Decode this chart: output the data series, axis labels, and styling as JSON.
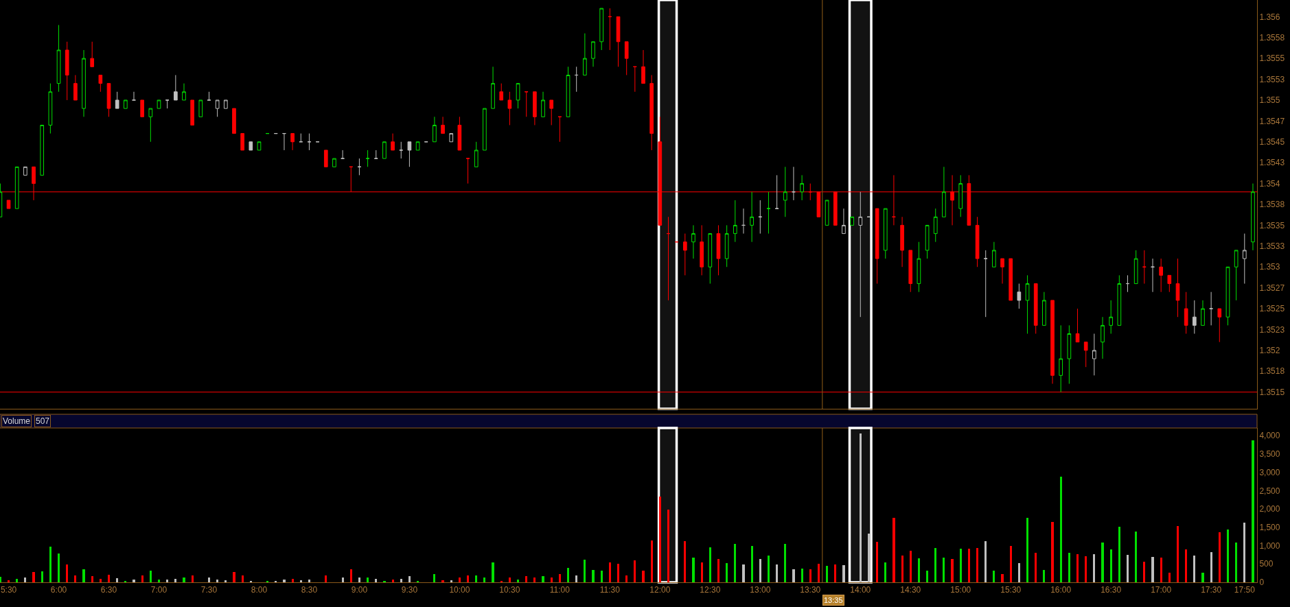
{
  "chart_data": [
    {
      "type": "candlestick",
      "x": [
        5.4167,
        5.5,
        5.5833,
        5.6667,
        5.75,
        5.8333,
        5.9167,
        6,
        6.0833,
        6.1667,
        6.25,
        6.3333,
        6.4167,
        6.5,
        6.5833,
        6.6667,
        6.75,
        6.8333,
        6.9167,
        7,
        7.0833,
        7.1667,
        7.25,
        7.3333,
        7.4167,
        7.5,
        7.5833,
        7.6667,
        7.75,
        7.8333,
        7.9167,
        8,
        8.0833,
        8.1667,
        8.25,
        8.3333,
        8.4167,
        8.5,
        8.5833,
        8.6667,
        8.75,
        8.8333,
        8.9167,
        9,
        9.0833,
        9.1667,
        9.25,
        9.3333,
        9.4167,
        9.5,
        9.5833,
        9.6667,
        9.75,
        9.8333,
        9.9167,
        10,
        10.0833,
        10.1667,
        10.25,
        10.3333,
        10.4167,
        10.5,
        10.5833,
        10.6667,
        10.75,
        10.8333,
        10.9167,
        11,
        11.0833,
        11.1667,
        11.25,
        11.3333,
        11.4167,
        11.5,
        11.5833,
        11.6667,
        11.75,
        11.8333,
        11.9167,
        12,
        12.0833,
        12.1667,
        12.25,
        12.3333,
        12.4167,
        12.5,
        12.5833,
        12.6667,
        12.75,
        12.8333,
        12.9167,
        13,
        13.0833,
        13.1667,
        13.25,
        13.3333,
        13.4167,
        13.5,
        13.5833,
        13.6667,
        13.75,
        13.8333,
        13.9167,
        14,
        14.0833,
        14.1667,
        14.25,
        14.3333,
        14.4167,
        14.5,
        14.5833,
        14.6667,
        14.75,
        14.8333,
        14.9167,
        15,
        15.0833,
        15.1667,
        15.25,
        15.3333,
        15.4167,
        15.5,
        15.5833,
        15.6667,
        15.75,
        15.8333,
        15.9167,
        16,
        16.0833,
        16.1667,
        16.25,
        16.3333,
        16.4167,
        16.5,
        16.5833,
        16.6667,
        16.75,
        16.8333,
        16.9167,
        17,
        17.0833,
        17.1667,
        17.25,
        17.3333,
        17.4167,
        17.5,
        17.5833,
        17.6667,
        17.75,
        17.8333,
        17.9167
      ],
      "ohlc": [
        [
          1.3536,
          1.354,
          1.3536,
          1.3539
        ],
        [
          1.3538,
          1.3538,
          1.3537,
          1.3537
        ],
        [
          1.3537,
          1.3542,
          1.3537,
          1.3542
        ],
        [
          1.3541,
          1.3542,
          1.3541,
          1.3542
        ],
        [
          1.3542,
          1.3542,
          1.3538,
          1.354
        ],
        [
          1.3541,
          1.3547,
          1.3541,
          1.3547
        ],
        [
          1.3547,
          1.3552,
          1.3546,
          1.3551
        ],
        [
          1.3552,
          1.3559,
          1.3551,
          1.3556
        ],
        [
          1.3556,
          1.3557,
          1.355,
          1.3553
        ],
        [
          1.3552,
          1.3553,
          1.355,
          1.355
        ],
        [
          1.3549,
          1.3556,
          1.3548,
          1.3555
        ],
        [
          1.3555,
          1.3557,
          1.3554,
          1.3554
        ],
        [
          1.3553,
          1.3553,
          1.3551,
          1.3552
        ],
        [
          1.3552,
          1.3552,
          1.3548,
          1.3549
        ],
        [
          1.355,
          1.3551,
          1.3549,
          1.3549
        ],
        [
          1.3549,
          1.355,
          1.3549,
          1.355
        ],
        [
          1.355,
          1.3551,
          1.355,
          1.355
        ],
        [
          1.355,
          1.355,
          1.3548,
          1.3548
        ],
        [
          1.3548,
          1.3549,
          1.3545,
          1.3549
        ],
        [
          1.3549,
          1.355,
          1.3549,
          1.355
        ],
        [
          1.355,
          1.355,
          1.3549,
          1.355
        ],
        [
          1.3551,
          1.3553,
          1.355,
          1.355
        ],
        [
          1.355,
          1.3552,
          1.355,
          1.3551
        ],
        [
          1.355,
          1.355,
          1.3547,
          1.3547
        ],
        [
          1.3548,
          1.355,
          1.3548,
          1.355
        ],
        [
          1.355,
          1.3551,
          1.355,
          1.355
        ],
        [
          1.3549,
          1.355,
          1.3548,
          1.355
        ],
        [
          1.3549,
          1.355,
          1.3549,
          1.355
        ],
        [
          1.3549,
          1.3549,
          1.3546,
          1.3546
        ],
        [
          1.3546,
          1.3546,
          1.3544,
          1.3544
        ],
        [
          1.3545,
          1.3545,
          1.3544,
          1.3544
        ],
        [
          1.3544,
          1.3545,
          1.3544,
          1.3545
        ],
        [
          1.3546,
          1.3546,
          1.3546,
          1.3546
        ],
        [
          1.3546,
          1.3546,
          1.3546,
          1.3546
        ],
        [
          1.3546,
          1.3546,
          1.3544,
          1.3546
        ],
        [
          1.3546,
          1.3546,
          1.3544,
          1.3545
        ],
        [
          1.3545,
          1.3546,
          1.3545,
          1.3545
        ],
        [
          1.3545,
          1.3546,
          1.3544,
          1.3545
        ],
        [
          1.3545,
          1.3545,
          1.3545,
          1.3545
        ],
        [
          1.3544,
          1.3544,
          1.3542,
          1.3542
        ],
        [
          1.3542,
          1.3543,
          1.3542,
          1.3543
        ],
        [
          1.3543,
          1.3544,
          1.3543,
          1.3543
        ],
        [
          1.3542,
          1.3542,
          1.3539,
          1.3542
        ],
        [
          1.3542,
          1.3543,
          1.3541,
          1.3542
        ],
        [
          1.3543,
          1.3544,
          1.3542,
          1.3543
        ],
        [
          1.3543,
          1.3544,
          1.3543,
          1.3543
        ],
        [
          1.3543,
          1.3545,
          1.3543,
          1.3545
        ],
        [
          1.3545,
          1.3546,
          1.3544,
          1.3544
        ],
        [
          1.3544,
          1.3545,
          1.3543,
          1.3544
        ],
        [
          1.3545,
          1.3545,
          1.3542,
          1.3544
        ],
        [
          1.3544,
          1.3545,
          1.3544,
          1.3545
        ],
        [
          1.3545,
          1.3545,
          1.3545,
          1.3545
        ],
        [
          1.3545,
          1.3548,
          1.3545,
          1.3547
        ],
        [
          1.3547,
          1.3548,
          1.3546,
          1.3546
        ],
        [
          1.3545,
          1.3546,
          1.3545,
          1.3546
        ],
        [
          1.3547,
          1.3548,
          1.3544,
          1.3544
        ],
        [
          1.3543,
          1.3543,
          1.354,
          1.3543
        ],
        [
          1.3542,
          1.3545,
          1.3542,
          1.3544
        ],
        [
          1.3544,
          1.3549,
          1.3544,
          1.3549
        ],
        [
          1.3549,
          1.3554,
          1.3549,
          1.3552
        ],
        [
          1.3551,
          1.3552,
          1.355,
          1.355
        ],
        [
          1.355,
          1.3551,
          1.3547,
          1.3549
        ],
        [
          1.355,
          1.3552,
          1.3549,
          1.3552
        ],
        [
          1.3551,
          1.3551,
          1.3548,
          1.3551
        ],
        [
          1.3551,
          1.3551,
          1.3547,
          1.3548
        ],
        [
          1.3548,
          1.3551,
          1.3548,
          1.355
        ],
        [
          1.355,
          1.355,
          1.3547,
          1.3549
        ],
        [
          1.3548,
          1.3548,
          1.3545,
          1.3548
        ],
        [
          1.3548,
          1.3554,
          1.3548,
          1.3553
        ],
        [
          1.3553,
          1.3554,
          1.3551,
          1.3553
        ],
        [
          1.3553,
          1.3558,
          1.3553,
          1.3555
        ],
        [
          1.3555,
          1.3557,
          1.3554,
          1.3557
        ],
        [
          1.3557,
          1.3561,
          1.3556,
          1.3561
        ],
        [
          1.356,
          1.3561,
          1.3556,
          1.356
        ],
        [
          1.356,
          1.356,
          1.3554,
          1.3557
        ],
        [
          1.3557,
          1.3557,
          1.3553,
          1.3555
        ],
        [
          1.3554,
          1.3554,
          1.3551,
          1.3554
        ],
        [
          1.3554,
          1.3556,
          1.3552,
          1.3552
        ],
        [
          1.3552,
          1.3553,
          1.3544,
          1.3546
        ],
        [
          1.3545,
          1.3548,
          1.3535,
          1.3535
        ],
        [
          1.3534,
          1.3536,
          1.3526,
          1.3534
        ],
        [
          1.3533,
          1.3533,
          1.3533,
          1.3533
        ],
        [
          1.3533,
          1.3534,
          1.3529,
          1.3532
        ],
        [
          1.3533,
          1.3535,
          1.3531,
          1.3534
        ],
        [
          1.3533,
          1.3535,
          1.3529,
          1.353
        ],
        [
          1.353,
          1.3534,
          1.3528,
          1.3534
        ],
        [
          1.3534,
          1.3535,
          1.3529,
          1.3531
        ],
        [
          1.3531,
          1.3535,
          1.353,
          1.3534
        ],
        [
          1.3534,
          1.3538,
          1.3533,
          1.3535
        ],
        [
          1.3535,
          1.3537,
          1.3534,
          1.3535
        ],
        [
          1.3535,
          1.3539,
          1.3533,
          1.3536
        ],
        [
          1.3536,
          1.3538,
          1.3534,
          1.3536
        ],
        [
          1.3537,
          1.3539,
          1.3534,
          1.3537
        ],
        [
          1.3537,
          1.3541,
          1.3537,
          1.3537
        ],
        [
          1.3538,
          1.3542,
          1.3536,
          1.3539
        ],
        [
          1.3539,
          1.3542,
          1.3538,
          1.3539
        ],
        [
          1.3539,
          1.3541,
          1.3538,
          1.354
        ],
        [
          1.3539,
          1.354,
          1.3538,
          1.3539
        ],
        [
          1.3539,
          1.3539,
          1.3536,
          1.3536
        ],
        [
          1.3535,
          1.3538,
          1.3535,
          1.3538
        ],
        [
          1.3539,
          1.3539,
          1.3535,
          1.3535
        ],
        [
          1.3534,
          1.3537,
          1.3534,
          1.3535
        ],
        [
          1.3535,
          1.3536,
          1.3535,
          1.3536
        ],
        [
          1.3535,
          1.3539,
          1.3524,
          1.3536
        ],
        [
          1.3536,
          1.3536,
          1.3536,
          1.3536
        ],
        [
          1.3537,
          1.3537,
          1.3528,
          1.3531
        ],
        [
          1.3532,
          1.3537,
          1.3531,
          1.3537
        ],
        [
          1.3536,
          1.3541,
          1.3535,
          1.3536
        ],
        [
          1.3535,
          1.3536,
          1.353,
          1.3532
        ],
        [
          1.3532,
          1.3532,
          1.3527,
          1.3528
        ],
        [
          1.3528,
          1.3533,
          1.3527,
          1.3531
        ],
        [
          1.3532,
          1.3535,
          1.3531,
          1.3535
        ],
        [
          1.3534,
          1.3537,
          1.3533,
          1.3536
        ],
        [
          1.3536,
          1.3542,
          1.3536,
          1.3539
        ],
        [
          1.3539,
          1.3541,
          1.3535,
          1.3538
        ],
        [
          1.3537,
          1.3541,
          1.3536,
          1.354
        ],
        [
          1.354,
          1.3541,
          1.3535,
          1.3535
        ],
        [
          1.3535,
          1.3536,
          1.353,
          1.3531
        ],
        [
          1.3531,
          1.3532,
          1.3524,
          1.3531
        ],
        [
          1.353,
          1.3533,
          1.353,
          1.3532
        ],
        [
          1.3531,
          1.3531,
          1.3528,
          1.353
        ],
        [
          1.3531,
          1.3531,
          1.3526,
          1.3526
        ],
        [
          1.3527,
          1.3528,
          1.3525,
          1.3526
        ],
        [
          1.3526,
          1.3529,
          1.3522,
          1.3528
        ],
        [
          1.3528,
          1.3528,
          1.3522,
          1.3523
        ],
        [
          1.3523,
          1.3527,
          1.3523,
          1.3526
        ],
        [
          1.3526,
          1.3526,
          1.3516,
          1.3517
        ],
        [
          1.3517,
          1.3523,
          1.3515,
          1.3519
        ],
        [
          1.3519,
          1.3523,
          1.3516,
          1.3522
        ],
        [
          1.3522,
          1.3525,
          1.3521,
          1.3521
        ],
        [
          1.3521,
          1.3521,
          1.3518,
          1.352
        ],
        [
          1.3519,
          1.3522,
          1.3517,
          1.352
        ],
        [
          1.3521,
          1.3524,
          1.3519,
          1.3523
        ],
        [
          1.3523,
          1.3526,
          1.3522,
          1.3524
        ],
        [
          1.3523,
          1.3529,
          1.3523,
          1.3528
        ],
        [
          1.3528,
          1.3529,
          1.3527,
          1.3528
        ],
        [
          1.3528,
          1.3532,
          1.3528,
          1.3531
        ],
        [
          1.353,
          1.3532,
          1.3528,
          1.353
        ],
        [
          1.353,
          1.3531,
          1.3527,
          1.353
        ],
        [
          1.353,
          1.3531,
          1.3527,
          1.3529
        ],
        [
          1.3529,
          1.3529,
          1.3527,
          1.3528
        ],
        [
          1.3528,
          1.3531,
          1.3524,
          1.3526
        ],
        [
          1.3525,
          1.3527,
          1.3522,
          1.3523
        ],
        [
          1.3524,
          1.3526,
          1.3522,
          1.3523
        ],
        [
          1.3523,
          1.3526,
          1.3523,
          1.3525
        ],
        [
          1.3525,
          1.3527,
          1.3523,
          1.3525
        ],
        [
          1.3525,
          1.3525,
          1.3521,
          1.3524
        ],
        [
          1.3524,
          1.353,
          1.3523,
          1.353
        ],
        [
          1.353,
          1.3532,
          1.3526,
          1.3532
        ],
        [
          1.3531,
          1.3534,
          1.3528,
          1.3532
        ],
        [
          1.3533,
          1.354,
          1.3532,
          1.3539
        ]
      ],
      "colors": [
        "#00e000",
        "#ff0000",
        "#00e000",
        "#c0c0c0",
        "#ff0000",
        "#00e000",
        "#00e000",
        "#00e000",
        "#ff0000",
        "#ff0000",
        "#00e000",
        "#ff0000",
        "#ff0000",
        "#ff0000",
        "#c0c0c0",
        "#00e000",
        "#c0c0c0",
        "#ff0000",
        "#00e000",
        "#00e000",
        "#c0c0c0",
        "#c0c0c0",
        "#00e000",
        "#ff0000",
        "#00e000",
        "#c0c0c0",
        "#c0c0c0",
        "#c0c0c0",
        "#ff0000",
        "#ff0000",
        "#c0c0c0",
        "#00e000",
        "#00e000",
        "#c0c0c0",
        "#c0c0c0",
        "#ff0000",
        "#c0c0c0",
        "#c0c0c0",
        "#c0c0c0",
        "#ff0000",
        "#00e000",
        "#c0c0c0",
        "#ff0000",
        "#c0c0c0",
        "#00e000",
        "#c0c0c0",
        "#00e000",
        "#ff0000",
        "#c0c0c0",
        "#c0c0c0",
        "#00e000",
        "#c0c0c0",
        "#00e000",
        "#ff0000",
        "#c0c0c0",
        "#ff0000",
        "#ff0000",
        "#00e000",
        "#00e000",
        "#00e000",
        "#ff0000",
        "#ff0000",
        "#00e000",
        "#ff0000",
        "#ff0000",
        "#00e000",
        "#ff0000",
        "#ff0000",
        "#00e000",
        "#c0c0c0",
        "#00e000",
        "#00e000",
        "#00e000",
        "#ff0000",
        "#ff0000",
        "#ff0000",
        "#ff0000",
        "#ff0000",
        "#ff0000",
        "#ff0000",
        "#ff0000",
        "#ff0000",
        "#ff0000",
        "#00e000",
        "#ff0000",
        "#00e000",
        "#ff0000",
        "#00e000",
        "#00e000",
        "#c0c0c0",
        "#00e000",
        "#c0c0c0",
        "#00e000",
        "#c0c0c0",
        "#00e000",
        "#c0c0c0",
        "#00e000",
        "#ff0000",
        "#ff0000",
        "#00e000",
        "#ff0000",
        "#c0c0c0",
        "#00e000",
        "#c0c0c0",
        "#c0c0c0",
        "#ff0000",
        "#00e000",
        "#ff0000",
        "#ff0000",
        "#ff0000",
        "#00e000",
        "#00e000",
        "#00e000",
        "#00e000",
        "#ff0000",
        "#00e000",
        "#ff0000",
        "#ff0000",
        "#c0c0c0",
        "#00e000",
        "#ff0000",
        "#ff0000",
        "#c0c0c0",
        "#00e000",
        "#ff0000",
        "#00e000",
        "#ff0000",
        "#00e000",
        "#00e000",
        "#ff0000",
        "#ff0000",
        "#c0c0c0",
        "#00e000",
        "#00e000",
        "#00e000",
        "#c0c0c0",
        "#00e000",
        "#ff0000",
        "#c0c0c0",
        "#ff0000",
        "#ff0000",
        "#ff0000",
        "#ff0000",
        "#c0c0c0",
        "#00e000",
        "#c0c0c0",
        "#ff0000",
        "#00e000",
        "#00e000",
        "#c0c0c0",
        "#00e000"
      ],
      "xlim": [
        5.414,
        17.958
      ],
      "ylim": [
        1.3513,
        1.3562
      ],
      "yticks": [
        1.356,
        {
          "value": 1.35575,
          "label": "1.3558"
        },
        1.3555,
        {
          "value": 1.35525,
          "label": "1.3553"
        },
        1.355,
        {
          "value": 1.35475,
          "label": "1.3547"
        },
        1.3545,
        {
          "value": 1.35425,
          "label": "1.3543"
        },
        1.354,
        {
          "value": 1.35375,
          "label": "1.3538"
        },
        1.3535,
        {
          "value": 1.35325,
          "label": "1.3533"
        },
        1.353,
        {
          "value": 1.35275,
          "label": "1.3527"
        },
        1.3525,
        {
          "value": 1.35225,
          "label": "1.3523"
        },
        1.352,
        {
          "value": 1.35175,
          "label": "1.3518"
        },
        1.3515
      ],
      "tick_labels": "y",
      "ref_lines": [
        {
          "axis": "y",
          "value": 1.3539,
          "color": "#ff0000"
        },
        {
          "axis": "y",
          "value": 1.3515,
          "color": "#ff0000"
        },
        {
          "axis": "x",
          "value": 13.62,
          "color": "#7a4f14"
        }
      ],
      "bands": [
        {
          "axis": "x",
          "from": 11.988,
          "to": 12.166,
          "color": "#ffffff"
        },
        {
          "axis": "x",
          "from": 13.892,
          "to": 14.108,
          "color": "#ffffff"
        }
      ]
    },
    {
      "type": "bar",
      "title": "Volume",
      "annotations": [
        "507",
        {
          "text": "13:35",
          "x": 13.62,
          "y": 0
        }
      ],
      "x": [
        5.4167,
        5.5,
        5.5833,
        5.6667,
        5.75,
        5.8333,
        5.9167,
        6,
        6.0833,
        6.1667,
        6.25,
        6.3333,
        6.4167,
        6.5,
        6.5833,
        6.6667,
        6.75,
        6.8333,
        6.9167,
        7,
        7.0833,
        7.1667,
        7.25,
        7.3333,
        7.4167,
        7.5,
        7.5833,
        7.6667,
        7.75,
        7.8333,
        7.9167,
        8,
        8.0833,
        8.1667,
        8.25,
        8.3333,
        8.4167,
        8.5,
        8.5833,
        8.6667,
        8.75,
        8.8333,
        8.9167,
        9,
        9.0833,
        9.1667,
        9.25,
        9.3333,
        9.4167,
        9.5,
        9.5833,
        9.6667,
        9.75,
        9.8333,
        9.9167,
        10,
        10.0833,
        10.1667,
        10.25,
        10.3333,
        10.4167,
        10.5,
        10.5833,
        10.6667,
        10.75,
        10.8333,
        10.9167,
        11,
        11.0833,
        11.1667,
        11.25,
        11.3333,
        11.4167,
        11.5,
        11.5833,
        11.6667,
        11.75,
        11.8333,
        11.9167,
        12,
        12.0833,
        12.1667,
        12.25,
        12.3333,
        12.4167,
        12.5,
        12.5833,
        12.6667,
        12.75,
        12.8333,
        12.9167,
        13,
        13.0833,
        13.1667,
        13.25,
        13.3333,
        13.4167,
        13.5,
        13.5833,
        13.6667,
        13.75,
        13.8333,
        13.9167,
        14,
        14.0833,
        14.1667,
        14.25,
        14.3333,
        14.4167,
        14.5,
        14.5833,
        14.6667,
        14.75,
        14.8333,
        14.9167,
        15,
        15.0833,
        15.1667,
        15.25,
        15.3333,
        15.4167,
        15.5,
        15.5833,
        15.6667,
        15.75,
        15.8333,
        15.9167,
        16,
        16.0833,
        16.1667,
        16.25,
        16.3333,
        16.4167,
        16.5,
        16.5833,
        16.6667,
        16.75,
        16.8333,
        16.9167,
        17,
        17.0833,
        17.1667,
        17.25,
        17.3333,
        17.4167,
        17.5,
        17.5833,
        17.6667,
        17.75,
        17.8333,
        17.9167
      ],
      "values": [
        150,
        60,
        100,
        130,
        280,
        300,
        970,
        780,
        480,
        190,
        350,
        160,
        100,
        210,
        120,
        30,
        80,
        180,
        320,
        70,
        70,
        90,
        140,
        180,
        null,
        140,
        70,
        50,
        290,
        190,
        40,
        null,
        30,
        30,
        70,
        100,
        50,
        70,
        null,
        180,
        null,
        130,
        360,
        140,
        130,
        90,
        30,
        70,
        100,
        160,
        30,
        null,
        230,
        60,
        60,
        130,
        180,
        180,
        140,
        550,
        40,
        140,
        70,
        160,
        140,
        160,
        130,
        230,
        390,
        190,
        610,
        340,
        320,
        550,
        500,
        190,
        590,
        320,
        1150,
        2340,
        1980,
        null,
        1130,
        680,
        540,
        950,
        640,
        520,
        1040,
        480,
        1000,
        640,
        730,
        480,
        1040,
        350,
        380,
        350,
        507,
        440,
        490,
        470,
        null,
        4060,
        1330,
        1110,
        550,
        1760,
        730,
        870,
        660,
        320,
        930,
        680,
        640,
        920,
        920,
        930,
        1130,
        320,
        230,
        1000,
        530,
        1760,
        800,
        330,
        1650,
        2880,
        800,
        770,
        720,
        770,
        1090,
        890,
        1510,
        750,
        1380,
        570,
        690,
        680,
        270,
        1530,
        890,
        730,
        270,
        820,
        1370,
        1450,
        1080,
        1630,
        3880
      ],
      "colors": [
        "#00e000",
        "#ff0000",
        "#00e000",
        "#c0c0c0",
        "#ff0000",
        "#00e000",
        "#00e000",
        "#00e000",
        "#ff0000",
        "#ff0000",
        "#00e000",
        "#ff0000",
        "#ff0000",
        "#ff0000",
        "#c0c0c0",
        "#00e000",
        "#c0c0c0",
        "#ff0000",
        "#00e000",
        "#00e000",
        "#c0c0c0",
        "#c0c0c0",
        "#00e000",
        "#ff0000",
        "#00e000",
        "#c0c0c0",
        "#c0c0c0",
        "#c0c0c0",
        "#ff0000",
        "#ff0000",
        "#c0c0c0",
        "#00e000",
        "#00e000",
        "#c0c0c0",
        "#c0c0c0",
        "#ff0000",
        "#c0c0c0",
        "#c0c0c0",
        "#c0c0c0",
        "#ff0000",
        "#00e000",
        "#c0c0c0",
        "#ff0000",
        "#c0c0c0",
        "#00e000",
        "#c0c0c0",
        "#00e000",
        "#ff0000",
        "#c0c0c0",
        "#c0c0c0",
        "#00e000",
        "#c0c0c0",
        "#00e000",
        "#ff0000",
        "#c0c0c0",
        "#ff0000",
        "#ff0000",
        "#00e000",
        "#00e000",
        "#00e000",
        "#ff0000",
        "#ff0000",
        "#00e000",
        "#ff0000",
        "#ff0000",
        "#00e000",
        "#ff0000",
        "#ff0000",
        "#00e000",
        "#c0c0c0",
        "#00e000",
        "#00e000",
        "#00e000",
        "#ff0000",
        "#ff0000",
        "#ff0000",
        "#ff0000",
        "#ff0000",
        "#ff0000",
        "#ff0000",
        "#ff0000",
        "#ff0000",
        "#ff0000",
        "#00e000",
        "#ff0000",
        "#00e000",
        "#ff0000",
        "#00e000",
        "#00e000",
        "#c0c0c0",
        "#00e000",
        "#c0c0c0",
        "#00e000",
        "#c0c0c0",
        "#00e000",
        "#c0c0c0",
        "#00e000",
        "#ff0000",
        "#ff0000",
        "#00e000",
        "#ff0000",
        "#c0c0c0",
        "#00e000",
        "#c0c0c0",
        "#c0c0c0",
        "#ff0000",
        "#00e000",
        "#ff0000",
        "#ff0000",
        "#ff0000",
        "#00e000",
        "#00e000",
        "#00e000",
        "#00e000",
        "#ff0000",
        "#00e000",
        "#ff0000",
        "#ff0000",
        "#c0c0c0",
        "#00e000",
        "#ff0000",
        "#ff0000",
        "#c0c0c0",
        "#00e000",
        "#ff0000",
        "#00e000",
        "#ff0000",
        "#00e000",
        "#00e000",
        "#ff0000",
        "#ff0000",
        "#c0c0c0",
        "#00e000",
        "#00e000",
        "#00e000",
        "#c0c0c0",
        "#00e000",
        "#ff0000",
        "#c0c0c0",
        "#ff0000",
        "#ff0000",
        "#ff0000",
        "#ff0000",
        "#c0c0c0",
        "#00e000",
        "#c0c0c0",
        "#ff0000",
        "#00e000",
        "#00e000",
        "#c0c0c0",
        "#00e000"
      ],
      "xlim": [
        5.414,
        17.958
      ],
      "xticks": [
        {
          "value": 5.5,
          "label": "5:30"
        },
        {
          "value": 6,
          "label": "6:00"
        },
        {
          "value": 6.5,
          "label": "6:30"
        },
        {
          "value": 7,
          "label": "7:00"
        },
        {
          "value": 7.5,
          "label": "7:30"
        },
        {
          "value": 8,
          "label": "8:00"
        },
        {
          "value": 8.5,
          "label": "8:30"
        },
        {
          "value": 9,
          "label": "9:00"
        },
        {
          "value": 9.5,
          "label": "9:30"
        },
        {
          "value": 10,
          "label": "10:00"
        },
        {
          "value": 10.5,
          "label": "10:30"
        },
        {
          "value": 11,
          "label": "11:00"
        },
        {
          "value": 11.5,
          "label": "11:30"
        },
        {
          "value": 12,
          "label": "12:00"
        },
        {
          "value": 12.5,
          "label": "12:30"
        },
        {
          "value": 13,
          "label": "13:00"
        },
        {
          "value": 13.5,
          "label": "13:30"
        },
        {
          "value": 14,
          "label": "14:00"
        },
        {
          "value": 14.5,
          "label": "14:30"
        },
        {
          "value": 15,
          "label": "15:00"
        },
        {
          "value": 15.5,
          "label": "15:30"
        },
        {
          "value": 16,
          "label": "16:00"
        },
        {
          "value": 16.5,
          "label": "16:30"
        },
        {
          "value": 17,
          "label": "17:00"
        },
        {
          "value": 17.5,
          "label": "17:30"
        },
        {
          "value": 17.8333,
          "label": "17:50"
        }
      ],
      "ylim": [
        0,
        4210
      ],
      "yticks": [
        0,
        500,
        {
          "value": 1000,
          "label": "1,000"
        },
        {
          "value": 1500,
          "label": "1,500"
        },
        {
          "value": 2000,
          "label": "2,000"
        },
        {
          "value": 2500,
          "label": "2,500"
        },
        {
          "value": 3000,
          "label": "3,000"
        },
        {
          "value": 3500,
          "label": "3,500"
        },
        {
          "value": 4000,
          "label": "4,000"
        }
      ],
      "ref_lines": [
        {
          "axis": "x",
          "value": 13.62,
          "color": "#7a4f14"
        }
      ],
      "bands": [
        {
          "axis": "x",
          "from": 11.988,
          "to": 12.166,
          "color": "#ffffff"
        },
        {
          "axis": "x",
          "from": 13.892,
          "to": 14.108,
          "color": "#ffffff"
        }
      ]
    }
  ]
}
